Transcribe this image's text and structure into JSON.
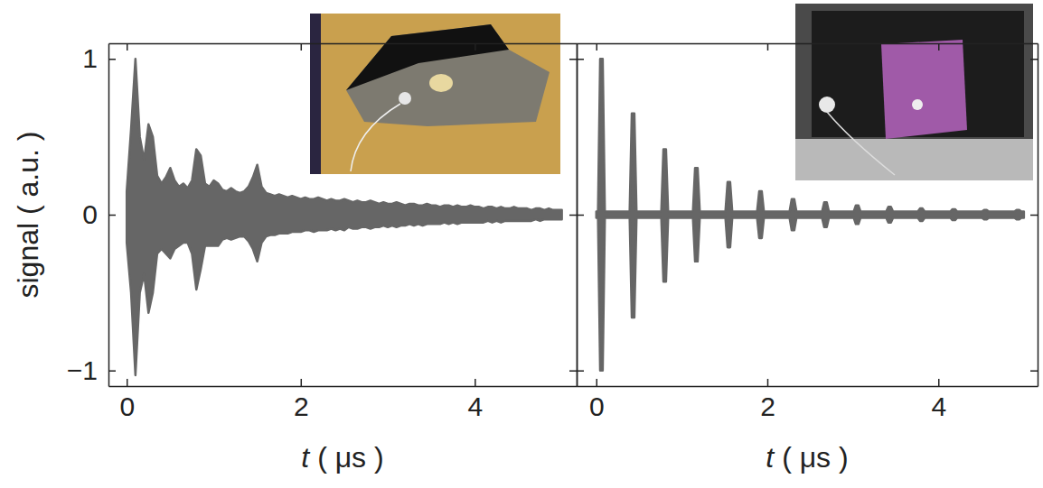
{
  "chart_data": [
    {
      "type": "area",
      "xlabel": "t ( μs )",
      "ylabel": "signal ( a.u. )",
      "xlim": [
        -0.21,
        5.17
      ],
      "ylim": [
        -1.1,
        1.1
      ],
      "xticks": [
        0,
        2,
        4
      ],
      "yticks": [
        1,
        0,
        {
          "value": -1,
          "label": "−1"
        }
      ],
      "x": [
        0,
        0.05,
        0.1,
        0.15,
        0.2,
        0.25,
        0.3,
        0.35,
        0.4,
        0.45,
        0.5,
        0.55,
        0.6,
        0.65,
        0.7,
        0.75,
        0.8,
        0.85,
        0.9,
        0.95,
        1.0,
        1.05,
        1.1,
        1.15,
        1.2,
        1.25,
        1.3,
        1.35,
        1.4,
        1.45,
        1.5,
        1.55,
        1.6,
        1.65,
        1.7,
        1.75,
        1.8,
        1.85,
        1.9,
        1.95,
        2.0,
        2.05,
        2.1,
        2.15,
        2.2,
        2.25,
        2.3,
        2.35,
        2.4,
        2.45,
        2.5,
        2.55,
        2.6,
        2.65,
        2.7,
        2.75,
        2.8,
        2.85,
        2.9,
        2.95,
        3.0,
        3.05,
        3.1,
        3.15,
        3.2,
        3.25,
        3.3,
        3.35,
        3.4,
        3.45,
        3.5,
        3.55,
        3.6,
        3.65,
        3.7,
        3.75,
        3.8,
        3.85,
        3.9,
        3.95,
        4.0,
        4.05,
        4.1,
        4.15,
        4.2,
        4.25,
        4.3,
        4.35,
        4.4,
        4.45,
        4.5,
        4.55,
        4.6,
        4.65,
        4.7,
        4.75,
        4.8,
        4.85,
        4.9,
        4.95,
        5.0
      ],
      "series": [
        {
          "color": "#666666",
          "values": [
            0.15,
            0.55,
            1.0,
            0.5,
            0.35,
            0.58,
            0.5,
            0.25,
            0.2,
            0.24,
            0.3,
            0.22,
            0.18,
            0.2,
            0.17,
            0.22,
            0.42,
            0.38,
            0.2,
            0.18,
            0.22,
            0.2,
            0.16,
            0.15,
            0.17,
            0.15,
            0.14,
            0.15,
            0.18,
            0.24,
            0.32,
            0.18,
            0.14,
            0.13,
            0.12,
            0.13,
            0.12,
            0.11,
            0.12,
            0.11,
            0.1,
            0.11,
            0.1,
            0.1,
            0.11,
            0.1,
            0.09,
            0.1,
            0.09,
            0.09,
            0.1,
            0.09,
            0.08,
            0.09,
            0.08,
            0.08,
            0.09,
            0.08,
            0.07,
            0.08,
            0.07,
            0.07,
            0.08,
            0.07,
            0.06,
            0.07,
            0.07,
            0.06,
            0.06,
            0.07,
            0.06,
            0.06,
            0.05,
            0.06,
            0.06,
            0.05,
            0.06,
            0.05,
            0.05,
            0.06,
            0.05,
            0.05,
            0.04,
            0.05,
            0.05,
            0.04,
            0.05,
            0.04,
            0.04,
            0.05,
            0.04,
            0.04,
            0.04,
            0.03,
            0.04,
            0.04,
            0.03,
            0.04,
            0.03,
            0.03,
            0.03
          ]
        },
        {
          "color": "#666666",
          "values": [
            -0.18,
            -0.5,
            -1.03,
            -0.5,
            -0.38,
            -0.63,
            -0.5,
            -0.25,
            -0.22,
            -0.25,
            -0.28,
            -0.22,
            -0.2,
            -0.18,
            -0.18,
            -0.25,
            -0.48,
            -0.35,
            -0.2,
            -0.2,
            -0.2,
            -0.2,
            -0.16,
            -0.15,
            -0.16,
            -0.15,
            -0.14,
            -0.14,
            -0.17,
            -0.22,
            -0.3,
            -0.18,
            -0.14,
            -0.13,
            -0.13,
            -0.12,
            -0.12,
            -0.12,
            -0.11,
            -0.11,
            -0.11,
            -0.1,
            -0.1,
            -0.11,
            -0.1,
            -0.1,
            -0.1,
            -0.09,
            -0.1,
            -0.09,
            -0.1,
            -0.08,
            -0.09,
            -0.09,
            -0.08,
            -0.08,
            -0.09,
            -0.08,
            -0.08,
            -0.07,
            -0.08,
            -0.07,
            -0.08,
            -0.07,
            -0.07,
            -0.06,
            -0.07,
            -0.06,
            -0.07,
            -0.06,
            -0.06,
            -0.06,
            -0.06,
            -0.05,
            -0.06,
            -0.05,
            -0.06,
            -0.05,
            -0.05,
            -0.05,
            -0.05,
            -0.05,
            -0.05,
            -0.04,
            -0.05,
            -0.04,
            -0.05,
            -0.04,
            -0.04,
            -0.04,
            -0.04,
            -0.04,
            -0.04,
            -0.04,
            -0.03,
            -0.04,
            -0.03,
            -0.03,
            -0.03,
            -0.03,
            -0.03
          ]
        }
      ]
    },
    {
      "type": "area",
      "xlabel": "t ( μs )",
      "xlim": [
        -0.23,
        5.16
      ],
      "ylim": [
        -1.1,
        1.1
      ],
      "xticks": [
        0,
        2,
        4
      ],
      "yticks": [
        1,
        0,
        -1
      ],
      "tick_labels": "x",
      "x": [
        0,
        0.02,
        0.045,
        0.075,
        0.1,
        0.39,
        0.415,
        0.445,
        0.47,
        0.76,
        0.785,
        0.815,
        0.84,
        1.13,
        1.155,
        1.185,
        1.21,
        1.51,
        1.535,
        1.565,
        1.59,
        1.88,
        1.905,
        1.935,
        1.96,
        2.26,
        2.285,
        2.315,
        2.34,
        2.64,
        2.665,
        2.695,
        2.72,
        3.01,
        3.035,
        3.065,
        3.09,
        3.39,
        3.415,
        3.445,
        3.47,
        3.76,
        3.785,
        3.815,
        3.84,
        4.14,
        4.165,
        4.195,
        4.22,
        4.51,
        4.535,
        4.565,
        4.59,
        4.89,
        4.915,
        4.945,
        4.97,
        5.0
      ],
      "series": [
        {
          "color": "#666666",
          "values": [
            0.02,
            0.02,
            1.0,
            1.0,
            0.02,
            0.02,
            0.65,
            0.65,
            0.02,
            0.02,
            0.42,
            0.42,
            0.02,
            0.02,
            0.3,
            0.3,
            0.02,
            0.02,
            0.21,
            0.21,
            0.02,
            0.02,
            0.15,
            0.15,
            0.02,
            0.02,
            0.1,
            0.1,
            0.02,
            0.02,
            0.08,
            0.08,
            0.02,
            0.02,
            0.06,
            0.06,
            0.02,
            0.02,
            0.05,
            0.05,
            0.02,
            0.02,
            0.04,
            0.04,
            0.02,
            0.02,
            0.035,
            0.035,
            0.02,
            0.02,
            0.03,
            0.03,
            0.02,
            0.02,
            0.03,
            0.03,
            0.02,
            0.02
          ]
        },
        {
          "color": "#666666",
          "values": [
            -0.02,
            -0.02,
            -1.0,
            -1.0,
            -0.02,
            -0.02,
            -0.66,
            -0.66,
            -0.02,
            -0.02,
            -0.43,
            -0.43,
            -0.02,
            -0.02,
            -0.3,
            -0.3,
            -0.02,
            -0.02,
            -0.21,
            -0.21,
            -0.02,
            -0.02,
            -0.15,
            -0.15,
            -0.02,
            -0.02,
            -0.1,
            -0.1,
            -0.02,
            -0.02,
            -0.08,
            -0.08,
            -0.02,
            -0.02,
            -0.06,
            -0.06,
            -0.02,
            -0.02,
            -0.05,
            -0.05,
            -0.02,
            -0.02,
            -0.04,
            -0.04,
            -0.02,
            -0.02,
            -0.035,
            -0.035,
            -0.02,
            -0.02,
            -0.03,
            -0.03,
            -0.02,
            -0.02,
            -0.03,
            -0.03,
            -0.02,
            -0.02
          ]
        }
      ]
    }
  ]
}
